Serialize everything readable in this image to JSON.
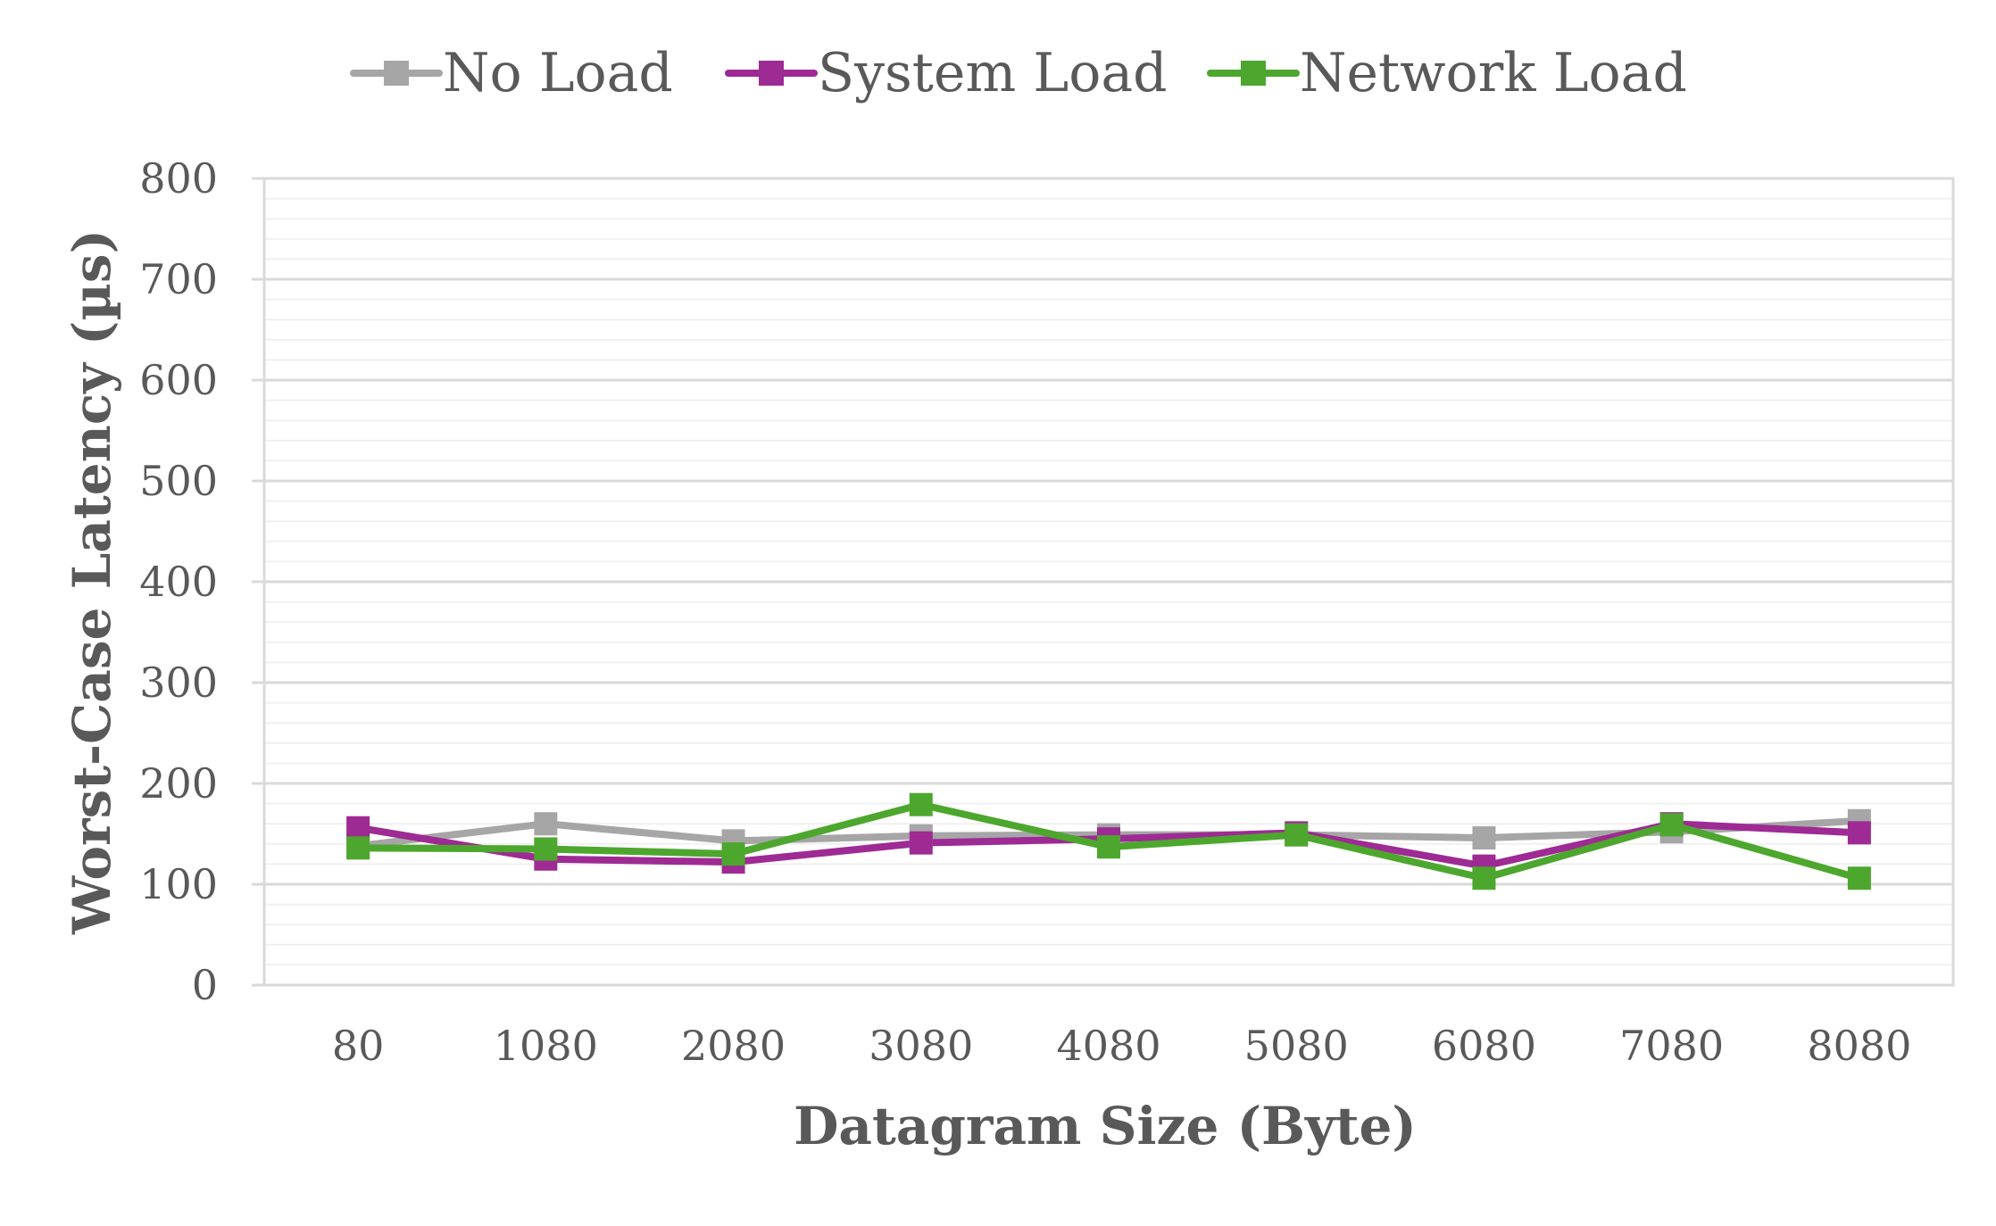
{
  "chart_data": {
    "type": "line",
    "title": "",
    "xlabel": "Datagram Size (Byte)",
    "ylabel": "Worst-Case Latency (µs)",
    "x": [
      "80",
      "1080",
      "2080",
      "3080",
      "4080",
      "5080",
      "6080",
      "7080",
      "8080"
    ],
    "ylim": [
      0,
      800
    ],
    "yticks": [
      "0",
      "100",
      "200",
      "300",
      "400",
      "500",
      "600",
      "700",
      "800"
    ],
    "grid": "horizontal major and minor",
    "legend": "top-center",
    "series": [
      {
        "name": "No Load",
        "color": "#A6A6A6",
        "marker": "square",
        "values": [
          138,
          160,
          143,
          148,
          149,
          149,
          146,
          152,
          163
        ]
      },
      {
        "name": "System Load",
        "color": "#9E2A94",
        "marker": "square",
        "values": [
          156,
          125,
          122,
          141,
          145,
          151,
          118,
          160,
          151
        ]
      },
      {
        "name": "Network Load",
        "color": "#4DA72E",
        "marker": "square",
        "values": [
          136,
          135,
          130,
          179,
          137,
          149,
          106,
          159,
          106
        ]
      }
    ]
  }
}
